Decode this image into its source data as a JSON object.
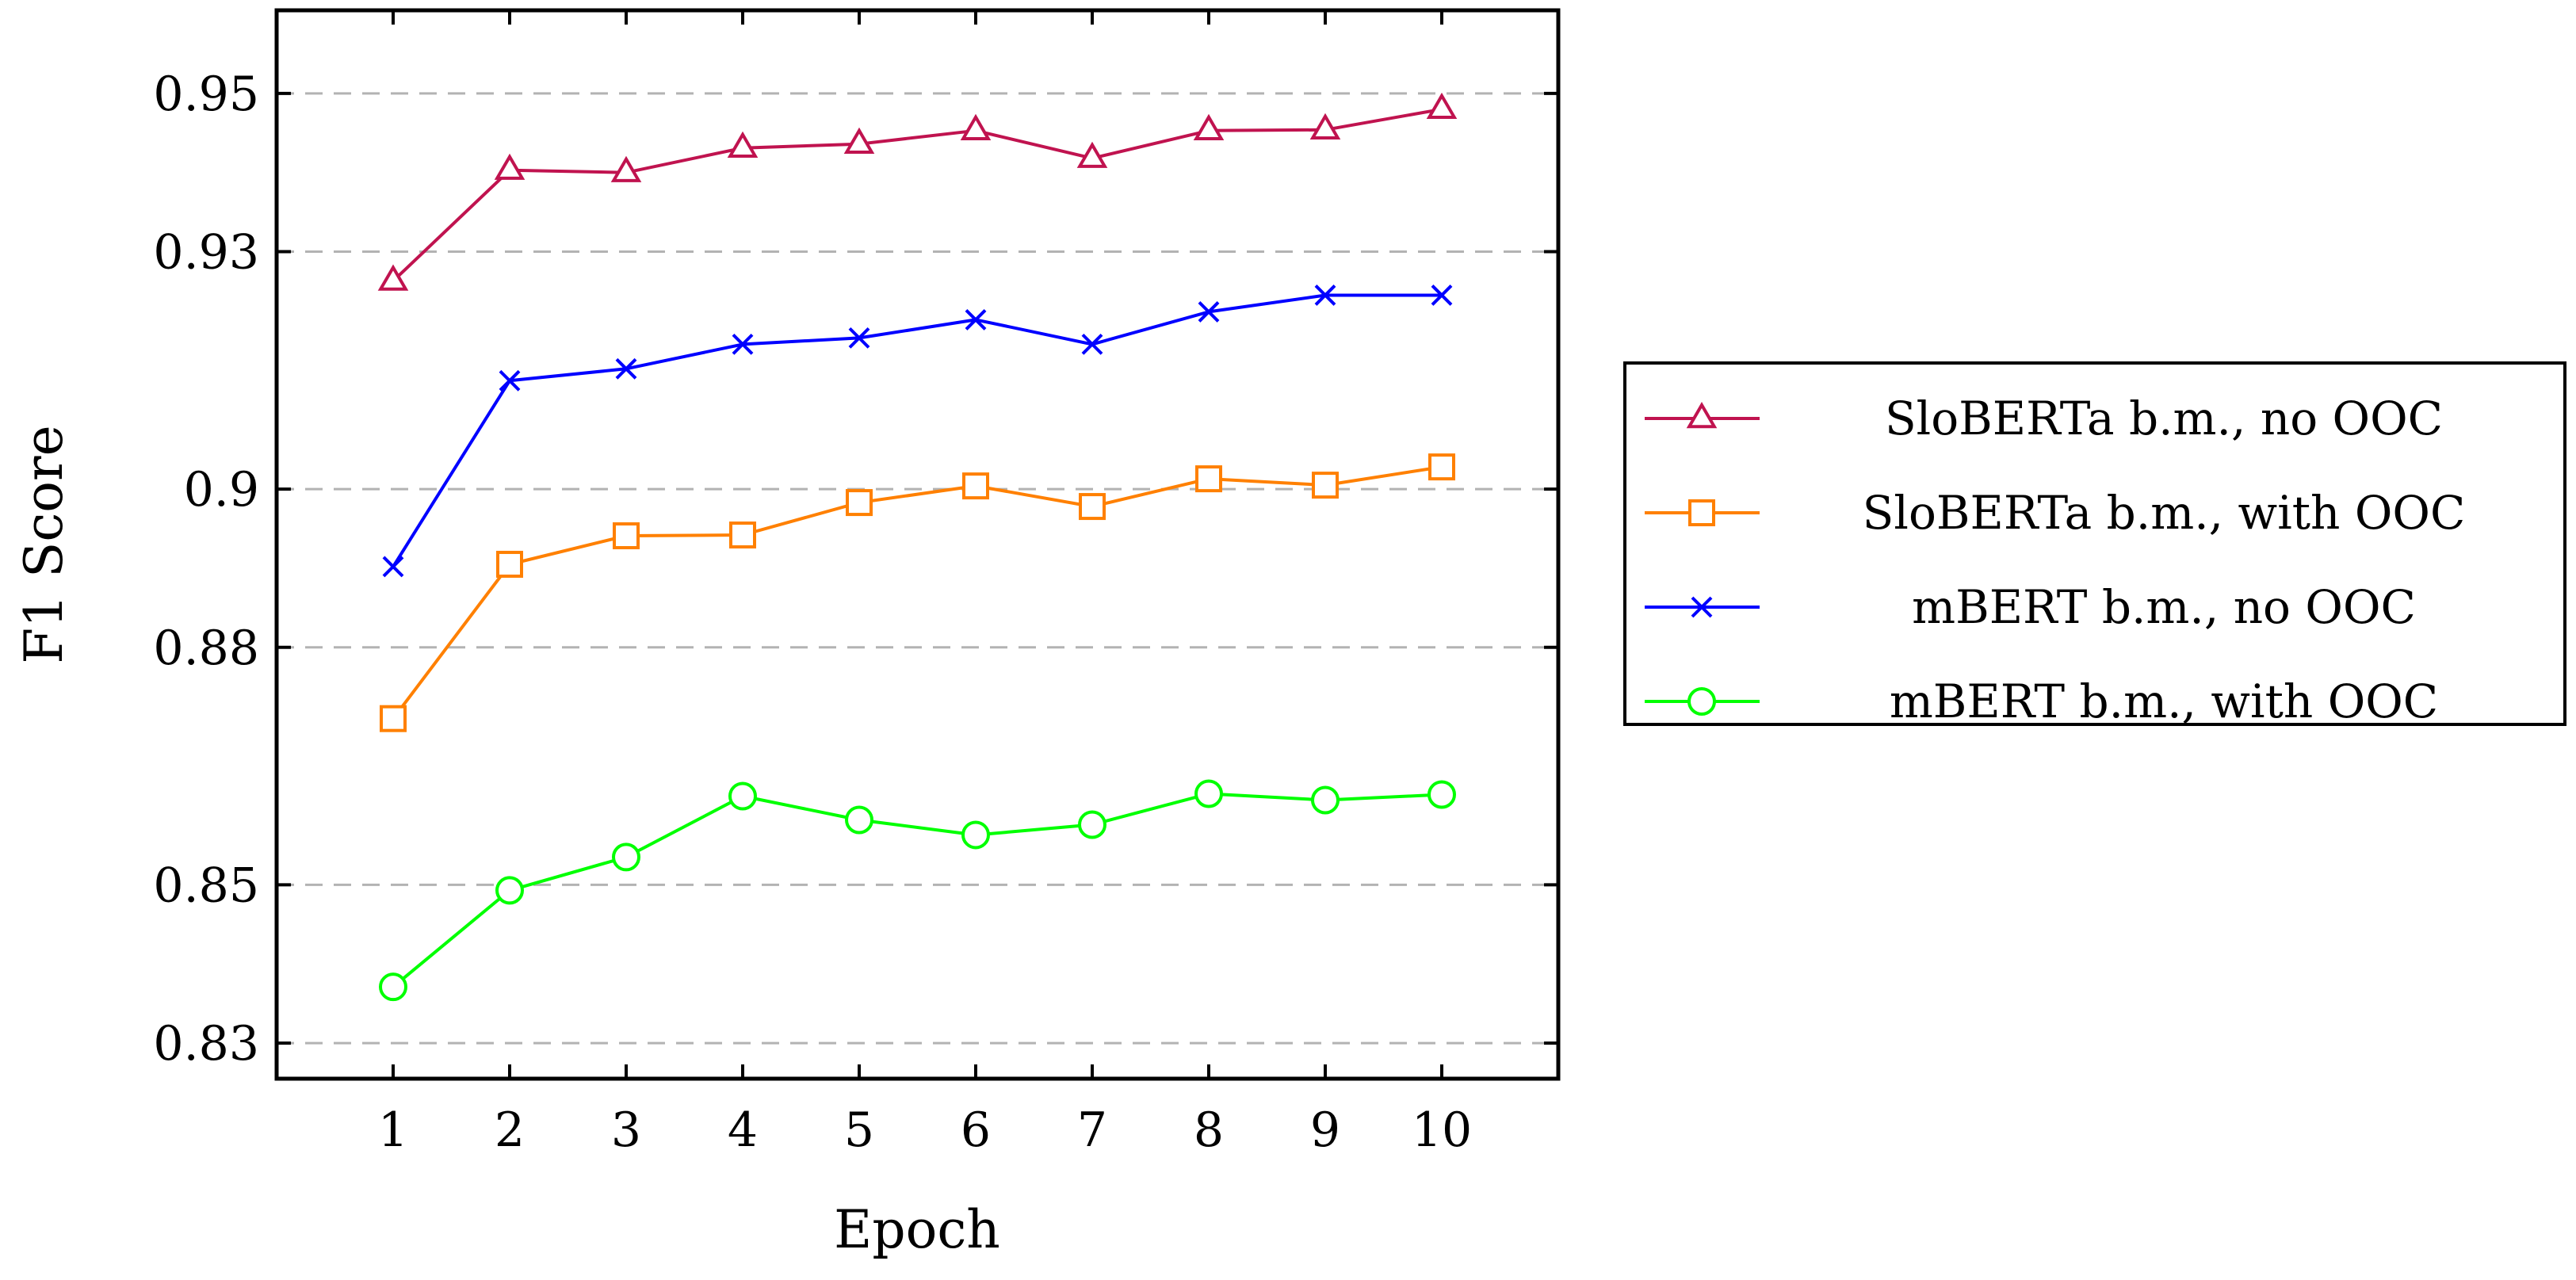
{
  "chart_data": {
    "type": "line",
    "xlabel": "Epoch",
    "ylabel": "F1 Score",
    "x": [
      1,
      2,
      3,
      4,
      5,
      6,
      7,
      8,
      9,
      10
    ],
    "xlim": [
      0,
      11
    ],
    "ylim": [
      0.8255,
      0.9605
    ],
    "xticks": [
      1,
      2,
      3,
      4,
      5,
      6,
      7,
      8,
      9,
      10
    ],
    "yticks": [
      0.83,
      0.85,
      0.88,
      0.9,
      0.93,
      0.95
    ],
    "ytick_labels": [
      "0.83",
      "0.85",
      "0.88",
      "0.9",
      "0.93",
      "0.95"
    ],
    "grid": "horizontal-dashed",
    "legend_position": "outside-right",
    "series": [
      {
        "name": "SloBERTa b.m., no OOC",
        "marker": "triangle",
        "color": "#c0134f",
        "values": [
          0.9263,
          0.9403,
          0.94,
          0.9431,
          0.9436,
          0.9453,
          0.9418,
          0.9453,
          0.9454,
          0.948
        ]
      },
      {
        "name": "SloBERTa b.m., with OOC",
        "marker": "square",
        "color": "#ff8000",
        "values": [
          0.871,
          0.8905,
          0.8941,
          0.8942,
          0.8983,
          0.9004,
          0.8978,
          0.9013,
          0.9005,
          0.9028
        ]
      },
      {
        "name": "mBERT b.m., no OOC",
        "marker": "x",
        "color": "#0000ff",
        "values": [
          0.8902,
          0.9137,
          0.9152,
          0.9183,
          0.9191,
          0.9214,
          0.9183,
          0.9224,
          0.9245,
          0.9245
        ]
      },
      {
        "name": "mBERT b.m., with OOC",
        "marker": "circle",
        "color": "#00ff00",
        "values": [
          0.8371,
          0.8493,
          0.8535,
          0.8612,
          0.8582,
          0.8563,
          0.8576,
          0.8615,
          0.8607,
          0.8614
        ]
      }
    ]
  }
}
